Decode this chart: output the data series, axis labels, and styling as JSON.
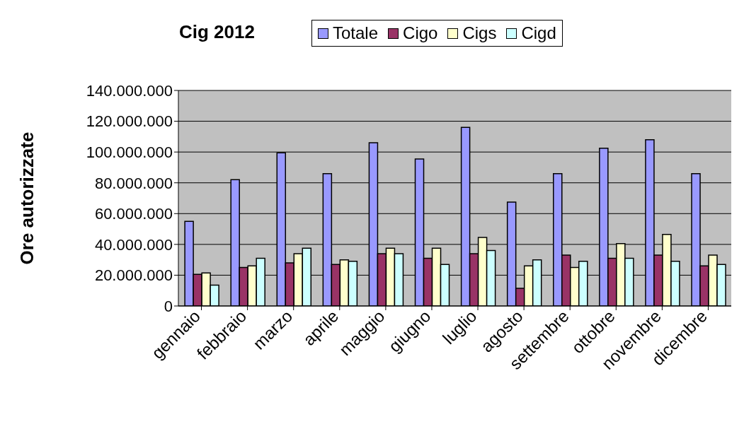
{
  "chart_data": {
    "type": "bar",
    "title": "Cig 2012",
    "ylabel": "Ore autorizzate",
    "categories": [
      "gennaio",
      "febbraio",
      "marzo",
      "aprile",
      "maggio",
      "giugno",
      "luglio",
      "agosto",
      "settembre",
      "ottobre",
      "novembre",
      "dicembre"
    ],
    "series": [
      {
        "name": "Totale",
        "color": "#9999ff",
        "values": [
          55000000,
          82000000,
          99500000,
          86000000,
          106000000,
          95500000,
          116000000,
          67500000,
          86000000,
          102500000,
          108000000,
          86000000
        ]
      },
      {
        "name": "Cigo",
        "color": "#993366",
        "values": [
          20500000,
          25000000,
          28000000,
          27000000,
          34000000,
          31000000,
          34000000,
          11500000,
          33000000,
          31000000,
          33000000,
          26000000
        ]
      },
      {
        "name": "Cigs",
        "color": "#ffffcc",
        "values": [
          21500000,
          26000000,
          34000000,
          30000000,
          37500000,
          37500000,
          44500000,
          26000000,
          25000000,
          40500000,
          46500000,
          33000000
        ]
      },
      {
        "name": "Cigd",
        "color": "#ccffff",
        "values": [
          13500000,
          31000000,
          37500000,
          29000000,
          34000000,
          27000000,
          36000000,
          30000000,
          29000000,
          31000000,
          29000000,
          27000000
        ]
      }
    ],
    "ylim": [
      0,
      140000000
    ],
    "yticks": [
      0,
      {
        "value": 20000000,
        "label": "20.000.000"
      },
      {
        "value": 40000000,
        "label": "40.000.000"
      },
      {
        "value": 60000000,
        "label": "60.000.000"
      },
      {
        "value": 80000000,
        "label": "80.000.000"
      },
      {
        "value": 100000000,
        "label": "100.000.000"
      },
      {
        "value": 120000000,
        "label": "120.000.000"
      },
      {
        "value": 140000000,
        "label": "140.000.000"
      }
    ],
    "grid": "y",
    "legend": "top"
  }
}
